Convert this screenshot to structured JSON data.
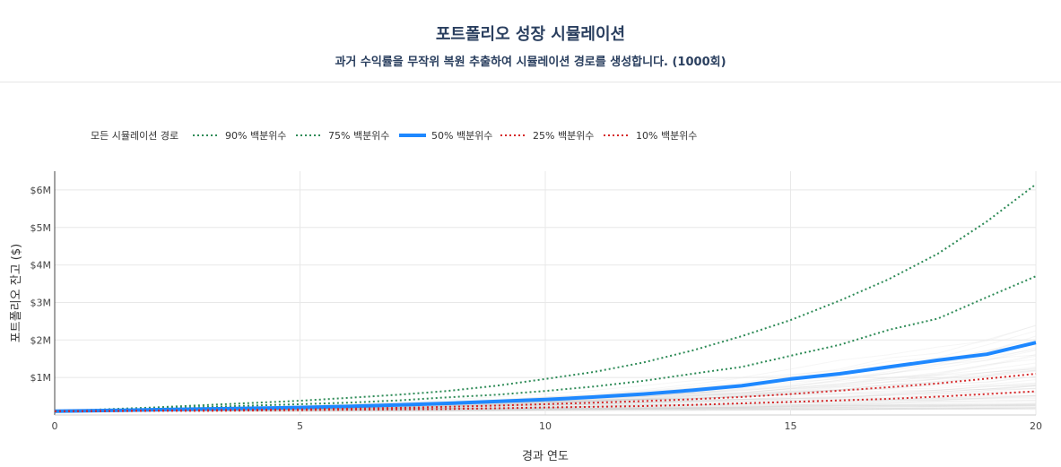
{
  "header": {
    "title": "포트폴리오 성장 시뮬레이션",
    "subtitle": "과거 수익률을 무작위 복원 추출하여 시뮬레이션 경로를 생성합니다. (1000회)"
  },
  "chart_data": {
    "type": "line",
    "xlabel": "경과 연도",
    "ylabel": "포트폴리오 잔고 ($)",
    "xlim": [
      0,
      20
    ],
    "ylim": [
      0,
      6.5
    ],
    "x_ticks": [
      0,
      5,
      10,
      15,
      20
    ],
    "x_tick_labels": [
      "0",
      "5",
      "10",
      "15",
      "20"
    ],
    "y_ticks": [
      1,
      2,
      3,
      4,
      5,
      6
    ],
    "y_tick_labels": [
      "$1M",
      "$2M",
      "$3M",
      "$4M",
      "$5M",
      "$6M"
    ],
    "y_unit": "millions USD",
    "grid": true,
    "legend_position": "top-left",
    "background_paths_label": "모든 시뮬레이션 경로",
    "x": [
      0,
      1,
      2,
      3,
      4,
      5,
      6,
      7,
      8,
      9,
      10,
      11,
      12,
      13,
      14,
      15,
      16,
      17,
      18,
      19,
      20
    ],
    "series": [
      {
        "name": "90% 백분위수",
        "color": "#2e8b57",
        "dash": "dot",
        "values": [
          0.1,
          0.15,
          0.2,
          0.26,
          0.32,
          0.38,
          0.46,
          0.54,
          0.64,
          0.78,
          0.96,
          1.15,
          1.4,
          1.72,
          2.1,
          2.53,
          3.05,
          3.62,
          4.3,
          5.16,
          6.15
        ]
      },
      {
        "name": "75% 백분위수",
        "color": "#2e8b57",
        "dash": "dot",
        "values": [
          0.1,
          0.13,
          0.17,
          0.21,
          0.25,
          0.29,
          0.33,
          0.39,
          0.47,
          0.54,
          0.64,
          0.76,
          0.91,
          1.1,
          1.28,
          1.58,
          1.87,
          2.27,
          2.57,
          3.14,
          3.7
        ]
      },
      {
        "name": "50% 백분위수",
        "color": "#1e88ff",
        "dash": "solid",
        "values": [
          0.1,
          0.12,
          0.14,
          0.16,
          0.18,
          0.2,
          0.23,
          0.27,
          0.31,
          0.36,
          0.41,
          0.48,
          0.56,
          0.66,
          0.78,
          0.96,
          1.1,
          1.28,
          1.46,
          1.62,
          1.93
        ]
      },
      {
        "name": "25% 백분위수",
        "color": "#d62728",
        "dash": "dot",
        "values": [
          0.1,
          0.11,
          0.12,
          0.13,
          0.14,
          0.15,
          0.17,
          0.19,
          0.22,
          0.25,
          0.29,
          0.33,
          0.37,
          0.42,
          0.48,
          0.56,
          0.65,
          0.74,
          0.84,
          0.97,
          1.1
        ]
      },
      {
        "name": "10% 백분위수",
        "color": "#d62728",
        "dash": "dot",
        "values": [
          0.1,
          0.1,
          0.11,
          0.11,
          0.12,
          0.13,
          0.14,
          0.15,
          0.16,
          0.18,
          0.2,
          0.22,
          0.24,
          0.27,
          0.31,
          0.35,
          0.39,
          0.43,
          0.49,
          0.56,
          0.63
        ]
      }
    ]
  }
}
